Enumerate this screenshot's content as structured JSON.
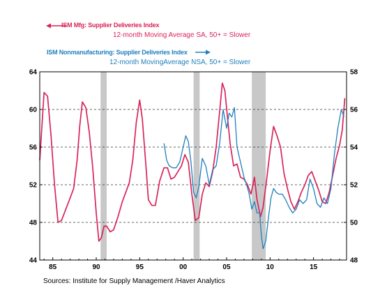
{
  "chart_data": {
    "type": "line",
    "xlim": [
      1983.5,
      2018.8
    ],
    "shading": [
      [
        1990.5,
        1991.2
      ],
      [
        2001.2,
        2001.9
      ],
      [
        2007.9,
        2009.5
      ]
    ],
    "x_ticks": [
      {
        "value": 1985,
        "label": "85"
      },
      {
        "value": 1990,
        "label": "90"
      },
      {
        "value": 1995,
        "label": "95"
      },
      {
        "value": 2000,
        "label": "00"
      },
      {
        "value": 2005,
        "label": "05"
      },
      {
        "value": 2010,
        "label": "10"
      },
      {
        "value": 2015,
        "label": "15"
      }
    ],
    "left_axis": {
      "ylim": [
        44,
        64
      ],
      "ticks": [
        "64",
        "60",
        "56",
        "52",
        "48",
        "44"
      ]
    },
    "right_axis": {
      "ylim": [
        48,
        58
      ],
      "ticks": [
        "58",
        "56",
        "54",
        "52",
        "50",
        "48"
      ]
    },
    "grid": {
      "horizontal": [
        60,
        56,
        52,
        48
      ],
      "style": "dashed"
    },
    "series": [
      {
        "name": "ISM Mfg: Supplier Deliveries Index",
        "subtitle": "12-month Moving Average      SA, 50+ = Slower",
        "axis": "left",
        "color": "#d8245a",
        "x": [
          1983.5,
          1984.0,
          1984.4,
          1984.8,
          1985.2,
          1985.6,
          1986.0,
          1986.5,
          1987.0,
          1987.4,
          1987.8,
          1988.1,
          1988.4,
          1988.8,
          1989.2,
          1989.6,
          1990.0,
          1990.3,
          1990.6,
          1990.9,
          1991.2,
          1991.6,
          1992.0,
          1992.5,
          1993.0,
          1993.4,
          1993.8,
          1994.2,
          1994.6,
          1995.0,
          1995.3,
          1995.7,
          1996.0,
          1996.4,
          1996.8,
          1997.3,
          1997.8,
          1998.2,
          1998.6,
          1999.0,
          1999.4,
          1999.8,
          2000.2,
          2000.6,
          2001.0,
          2001.4,
          2001.8,
          2002.2,
          2002.6,
          2003.0,
          2003.4,
          2003.8,
          2004.2,
          2004.5,
          2004.8,
          2005.1,
          2005.4,
          2005.8,
          2006.2,
          2006.6,
          2007.0,
          2007.4,
          2007.8,
          2008.2,
          2008.5,
          2008.9,
          2009.2,
          2009.6,
          2010.0,
          2010.4,
          2010.8,
          2011.2,
          2011.6,
          2012.0,
          2012.4,
          2012.8,
          2013.2,
          2013.6,
          2014.0,
          2014.4,
          2014.8,
          2015.2,
          2015.6,
          2016.0,
          2016.4,
          2016.8,
          2017.2,
          2017.6,
          2018.0,
          2018.3,
          2018.6
        ],
        "y": [
          54.6,
          61.8,
          61.4,
          57.2,
          52.0,
          48.0,
          48.2,
          49.4,
          50.6,
          51.6,
          54.6,
          58.2,
          60.8,
          60.2,
          57.6,
          53.8,
          49.0,
          46.0,
          46.4,
          47.6,
          47.6,
          47.0,
          47.2,
          48.6,
          50.2,
          51.2,
          52.2,
          54.6,
          58.6,
          61.0,
          59.0,
          54.2,
          50.4,
          49.8,
          49.8,
          52.4,
          53.8,
          53.8,
          52.6,
          52.8,
          53.4,
          54.0,
          55.2,
          54.4,
          51.0,
          48.2,
          48.5,
          51.0,
          52.2,
          51.8,
          53.4,
          56.0,
          59.8,
          62.8,
          62.0,
          59.2,
          56.4,
          54.0,
          54.2,
          52.8,
          52.6,
          52.0,
          51.0,
          52.8,
          50.4,
          48.6,
          49.6,
          52.5,
          55.6,
          58.2,
          57.2,
          56.0,
          53.2,
          51.6,
          50.2,
          49.4,
          50.2,
          51.2,
          52.0,
          53.0,
          53.4,
          52.4,
          51.4,
          50.2,
          50.0,
          51.2,
          53.0,
          54.8,
          56.2,
          57.8,
          61.2
        ]
      },
      {
        "name": "ISM Nonmanufacturing: Supplier Deliveries Index",
        "subtitle": "12-month MovingAverage      NSA, 50+ = Slower",
        "axis": "right",
        "color": "#1f7fbd",
        "x": [
          1997.8,
          1998.1,
          1998.4,
          1998.8,
          1999.2,
          1999.6,
          2000.0,
          2000.3,
          2000.6,
          2000.9,
          2001.2,
          2001.5,
          2001.8,
          2002.2,
          2002.6,
          2003.0,
          2003.4,
          2003.8,
          2004.2,
          2004.6,
          2005.0,
          2005.3,
          2005.6,
          2005.9,
          2006.2,
          2006.6,
          2007.0,
          2007.3,
          2007.6,
          2007.9,
          2008.2,
          2008.5,
          2008.8,
          2009.0,
          2009.2,
          2009.5,
          2009.8,
          2010.1,
          2010.4,
          2010.7,
          2011.0,
          2011.4,
          2011.8,
          2012.2,
          2012.6,
          2013.0,
          2013.4,
          2013.8,
          2014.2,
          2014.6,
          2015.0,
          2015.4,
          2015.8,
          2016.2,
          2016.6,
          2017.0,
          2017.4,
          2017.8,
          2018.2,
          2018.5
        ],
        "y": [
          54.2,
          53.3,
          53.0,
          52.9,
          52.9,
          53.2,
          54.0,
          54.6,
          54.3,
          53.2,
          51.6,
          51.3,
          51.9,
          53.4,
          53.0,
          52.0,
          52.8,
          53.0,
          54.2,
          56.0,
          55.0,
          55.8,
          55.6,
          56.1,
          54.0,
          53.2,
          52.4,
          52.0,
          51.5,
          50.7,
          51.1,
          50.5,
          50.5,
          49.3,
          48.6,
          49.0,
          50.2,
          51.3,
          51.8,
          51.6,
          51.5,
          51.5,
          51.2,
          50.8,
          50.5,
          50.7,
          51.2,
          51.0,
          51.2,
          52.3,
          51.8,
          51.0,
          50.8,
          51.3,
          51.0,
          51.8,
          53.6,
          55.0,
          56.0,
          55.6
        ]
      }
    ],
    "source": "Sources:  Institute for Supply Management /Haver Analytics"
  }
}
